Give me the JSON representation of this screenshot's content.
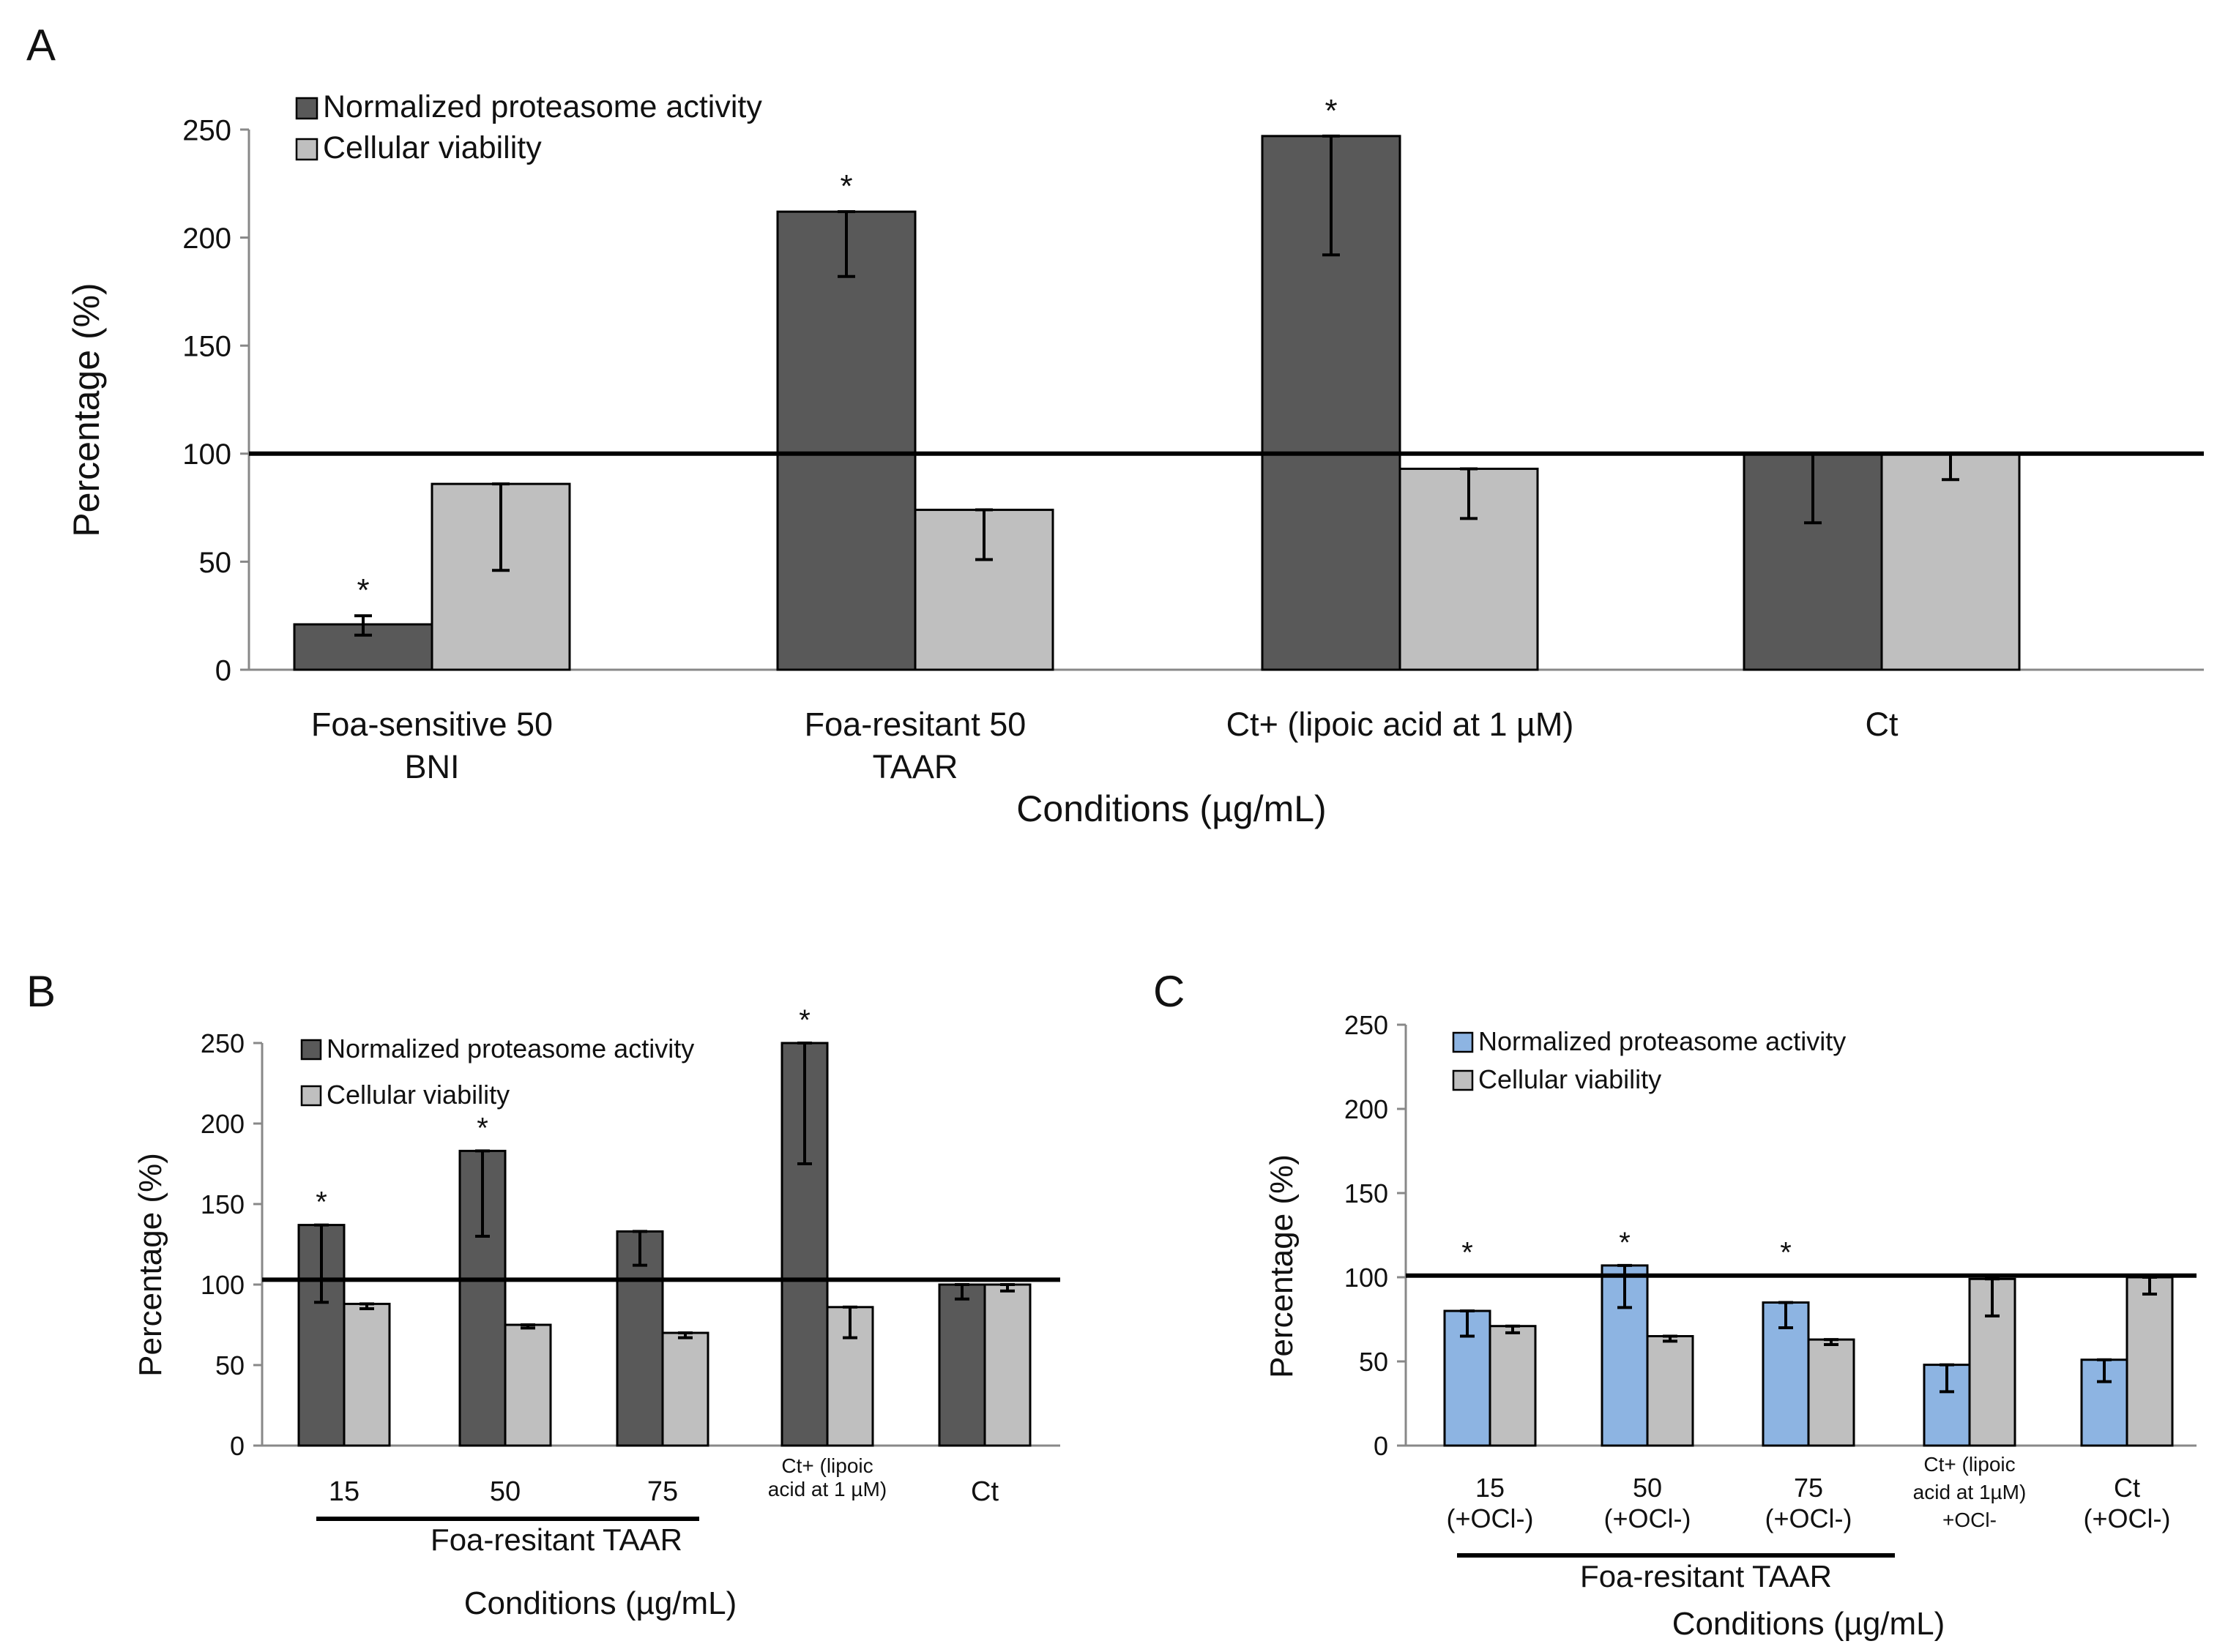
{
  "colors": {
    "proteasome_dark": "#595959",
    "proteasome_blue": "#8DB4E2",
    "viability": "#BFBFBF",
    "axis": "#888888",
    "line": "#000000"
  },
  "chart_data": [
    {
      "panel": "A",
      "type": "bar",
      "ylabel": "Percentage (%)",
      "xlabel": "Conditions (µg/mL)",
      "ylim": [
        0,
        250
      ],
      "yticks": [
        0,
        50,
        100,
        150,
        200,
        250
      ],
      "reference_line": 100,
      "legend": [
        "Normalized proteasome activity",
        "Cellular viability"
      ],
      "categories": [
        [
          "Foa-sensitive  50",
          "BNI"
        ],
        [
          "Foa-resitant  50",
          "TAAR"
        ],
        [
          "Ct+ (lipoic acid at 1 µM)"
        ],
        [
          "Ct"
        ]
      ],
      "series": [
        {
          "name": "Normalized proteasome activity",
          "values": [
            21,
            212,
            247,
            100
          ],
          "err_lo": [
            16,
            182,
            192,
            68
          ],
          "err_hi": [
            25,
            212,
            247,
            100
          ]
        },
        {
          "name": "Cellular viability",
          "values": [
            86,
            74,
            93,
            100
          ],
          "err_lo": [
            46,
            51,
            70,
            88
          ],
          "err_hi": [
            86,
            74,
            93,
            100
          ]
        }
      ],
      "asterisks": [
        {
          "category": 0,
          "series": 0,
          "text": "*"
        },
        {
          "category": 1,
          "series": 0,
          "text": "*"
        },
        {
          "category": 2,
          "series": 0,
          "text": "*"
        }
      ]
    },
    {
      "panel": "B",
      "type": "bar",
      "ylabel": "Percentage (%)",
      "xlabel": "Conditions (µg/mL)",
      "group_label": "Foa-resitant TAAR",
      "ylim": [
        0,
        250
      ],
      "yticks": [
        0,
        50,
        100,
        150,
        200,
        250
      ],
      "reference_line": 103,
      "legend": [
        "Normalized proteasome activity",
        "Cellular viability"
      ],
      "categories": [
        [
          "15"
        ],
        [
          "50"
        ],
        [
          "75"
        ],
        [
          "Ct+ (lipoic",
          "acid at 1 µM)"
        ],
        [
          "Ct"
        ]
      ],
      "series": [
        {
          "name": "Normalized proteasome activity",
          "values": [
            137,
            183,
            133,
            250,
            100
          ],
          "err_lo": [
            89,
            130,
            112,
            175,
            91
          ],
          "err_hi": [
            137,
            183,
            133,
            250,
            100
          ]
        },
        {
          "name": "Cellular viability",
          "values": [
            88,
            75,
            70,
            86,
            100
          ],
          "err_lo": [
            85,
            73,
            67,
            67,
            96
          ],
          "err_hi": [
            88,
            75,
            70,
            86,
            100
          ]
        }
      ],
      "asterisks": [
        {
          "category": 0,
          "series": 0,
          "text": "*"
        },
        {
          "category": 1,
          "series": 0,
          "text": "*"
        },
        {
          "category": 3,
          "series": 0,
          "text": "*"
        }
      ]
    },
    {
      "panel": "C",
      "type": "bar",
      "ylabel": "Percentage (%)",
      "xlabel": "Conditions (µg/mL)",
      "group_label": "Foa-resitant TAAR",
      "ylim": [
        0,
        250
      ],
      "yticks": [
        0,
        50,
        100,
        150,
        200,
        250
      ],
      "reference_line": 101,
      "legend": [
        "Normalized proteasome activity",
        "Cellular viability"
      ],
      "categories": [
        [
          "15",
          "(+OCl-)"
        ],
        [
          "50",
          "(+OCl-)"
        ],
        [
          "75",
          "(+OCl-)"
        ],
        [
          "Ct+ (lipoic",
          "acid at 1µM)",
          "+OCl-"
        ],
        [
          "Ct",
          "(+OCl-)"
        ]
      ],
      "series": [
        {
          "name": "Normalized proteasome activity",
          "values": [
            80,
            107,
            85,
            48,
            51
          ],
          "err_lo": [
            65,
            82,
            70,
            32,
            38
          ],
          "err_hi": [
            80,
            107,
            85,
            48,
            51
          ]
        },
        {
          "name": "Cellular viability",
          "values": [
            71,
            65,
            63,
            99,
            100
          ],
          "err_lo": [
            67,
            62,
            60,
            77,
            90
          ],
          "err_hi": [
            71,
            65,
            63,
            99,
            100
          ]
        }
      ],
      "asterisks": [
        {
          "category": 0,
          "series": 0,
          "text": "*",
          "above_line": true
        },
        {
          "category": 1,
          "series": 0,
          "text": "*"
        },
        {
          "category": 2,
          "series": 0,
          "text": "*",
          "above_line": true
        }
      ]
    }
  ]
}
